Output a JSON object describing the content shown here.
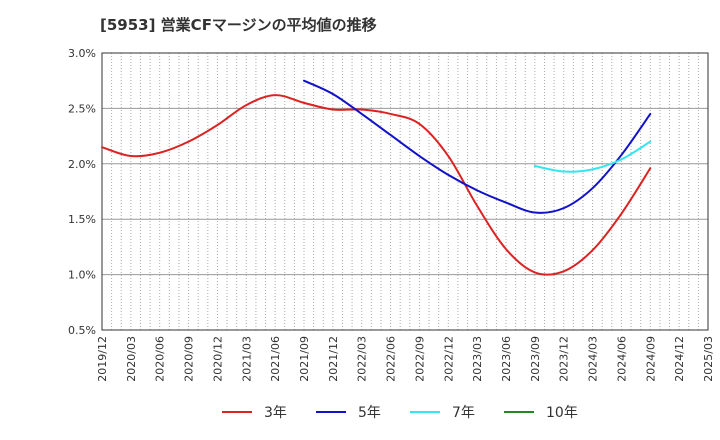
{
  "chart_data": {
    "type": "line",
    "title": "[5953]  営業CFマージンの平均値の推移",
    "xlabel": "",
    "ylabel": "",
    "x_ticks": [
      "2019/12",
      "2020/03",
      "2020/06",
      "2020/09",
      "2020/12",
      "2021/03",
      "2021/06",
      "2021/09",
      "2021/12",
      "2022/03",
      "2022/06",
      "2022/09",
      "2022/12",
      "2023/03",
      "2023/06",
      "2023/09",
      "2023/12",
      "2024/03",
      "2024/06",
      "2024/09",
      "2024/12",
      "2025/03"
    ],
    "y_ticks": [
      "0.5%",
      "1.0%",
      "1.5%",
      "2.0%",
      "2.5%",
      "3.0%"
    ],
    "ylim": [
      0.5,
      3.0
    ],
    "grid": true,
    "legend_position": "bottom",
    "series": [
      {
        "name": "3年",
        "color": "#dd2222",
        "points": [
          [
            "2019/12",
            2.15
          ],
          [
            "2020/03",
            2.07
          ],
          [
            "2020/06",
            2.1
          ],
          [
            "2020/09",
            2.2
          ],
          [
            "2020/12",
            2.35
          ],
          [
            "2021/03",
            2.53
          ],
          [
            "2021/06",
            2.62
          ],
          [
            "2021/09",
            2.55
          ],
          [
            "2021/12",
            2.49
          ],
          [
            "2022/03",
            2.49
          ],
          [
            "2022/06",
            2.45
          ],
          [
            "2022/09",
            2.36
          ],
          [
            "2022/12",
            2.07
          ],
          [
            "2023/03",
            1.62
          ],
          [
            "2023/06",
            1.23
          ],
          [
            "2023/09",
            1.02
          ],
          [
            "2023/12",
            1.03
          ],
          [
            "2024/03",
            1.22
          ],
          [
            "2024/06",
            1.55
          ],
          [
            "2024/09",
            1.96
          ]
        ]
      },
      {
        "name": "5年",
        "color": "#1111cc",
        "points": [
          [
            "2021/09",
            2.75
          ],
          [
            "2021/12",
            2.63
          ],
          [
            "2022/03",
            2.45
          ],
          [
            "2022/06",
            2.26
          ],
          [
            "2022/09",
            2.07
          ],
          [
            "2022/12",
            1.9
          ],
          [
            "2023/03",
            1.76
          ],
          [
            "2023/06",
            1.65
          ],
          [
            "2023/09",
            1.56
          ],
          [
            "2023/12",
            1.6
          ],
          [
            "2024/03",
            1.78
          ],
          [
            "2024/06",
            2.08
          ],
          [
            "2024/09",
            2.45
          ]
        ]
      },
      {
        "name": "7年",
        "color": "#33e6f0",
        "points": [
          [
            "2023/09",
            1.98
          ],
          [
            "2023/12",
            1.93
          ],
          [
            "2024/03",
            1.95
          ],
          [
            "2024/06",
            2.04
          ],
          [
            "2024/09",
            2.2
          ]
        ]
      },
      {
        "name": "10年",
        "color": "#228822",
        "points": []
      }
    ]
  }
}
